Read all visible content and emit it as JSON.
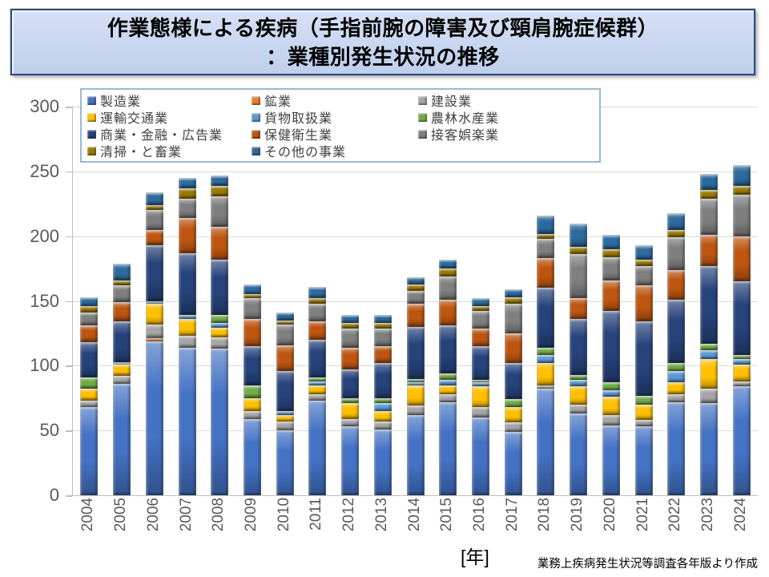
{
  "title": {
    "line1": "作業態様による疾病（手指前腕の障害及び頸肩腕症候群）",
    "line2": "：業種別発生状況の推移"
  },
  "footer": {
    "unit": "[年]",
    "source": "業務上疾病発生状況等調査各年版より作成"
  },
  "chart_data": {
    "type": "bar",
    "subtype": "stacked-vertical-3d-bevel",
    "title": "作業態様による疾病（手指前腕の障害及び頸肩腕症候群）：業種別発生状況の推移",
    "xlabel": "[年]",
    "ylabel": "",
    "ylim": [
      0,
      300
    ],
    "yticks": [
      0,
      50,
      100,
      150,
      200,
      250,
      300
    ],
    "grid": true,
    "legend_position": "top-inside",
    "axis_text_color": "#595959",
    "gridline_color": "#d9d9d9",
    "categories": [
      "2004",
      "2005",
      "2006",
      "2007",
      "2008",
      "2009",
      "2010",
      "2011",
      "2012",
      "2013",
      "2014",
      "2015",
      "2016",
      "2017",
      "2018",
      "2019",
      "2020",
      "2021",
      "2022",
      "2023",
      "2024"
    ],
    "totals": [
      153,
      179,
      234,
      245,
      247,
      163,
      141,
      161,
      139,
      139,
      168,
      182,
      152,
      159,
      216,
      210,
      201,
      193,
      218,
      248,
      255
    ],
    "series": [
      {
        "name": "製造業",
        "color": "#4472C4",
        "values": [
          68,
          86,
          119,
          114,
          113,
          59,
          50,
          73,
          53,
          51,
          62,
          72,
          60,
          49,
          82,
          63,
          54,
          53,
          72,
          71,
          84
        ]
      },
      {
        "name": "鉱業",
        "color": "#ED7D31",
        "values": [
          0,
          0,
          2,
          0,
          0,
          0,
          0,
          0,
          0,
          0,
          0,
          0,
          0,
          0,
          0,
          0,
          0,
          0,
          0,
          0,
          0
        ]
      },
      {
        "name": "建設業",
        "color": "#A5A5A5",
        "values": [
          5,
          6,
          11,
          9,
          9,
          6,
          7,
          5,
          6,
          6,
          7,
          6,
          8,
          7,
          3,
          7,
          8,
          5,
          6,
          11,
          4
        ]
      },
      {
        "name": "運輸交通業",
        "color": "#FFC000",
        "values": [
          9,
          9,
          16,
          13,
          7,
          10,
          5,
          7,
          12,
          8,
          16,
          7,
          16,
          12,
          17,
          14,
          14,
          12,
          9,
          23,
          13
        ]
      },
      {
        "name": "貨物取扱業",
        "color": "#5B9BD5",
        "values": [
          0,
          1,
          2,
          3,
          4,
          0,
          3,
          3,
          0,
          6,
          2,
          4,
          3,
          0,
          6,
          5,
          5,
          0,
          9,
          7,
          4
        ]
      },
      {
        "name": "農林水産業",
        "color": "#70AD47",
        "values": [
          9,
          1,
          0,
          0,
          6,
          10,
          0,
          3,
          4,
          4,
          3,
          5,
          2,
          6,
          6,
          4,
          6,
          7,
          6,
          5,
          3
        ]
      },
      {
        "name": "商業・金融・広告業",
        "color": "#26437C",
        "values": [
          27,
          31,
          43,
          48,
          43,
          30,
          31,
          29,
          22,
          27,
          40,
          37,
          26,
          28,
          46,
          43,
          55,
          57,
          49,
          60,
          57
        ]
      },
      {
        "name": "保健衛生業",
        "color": "#BE5611",
        "values": [
          13,
          15,
          12,
          27,
          25,
          21,
          20,
          14,
          17,
          13,
          18,
          20,
          14,
          23,
          23,
          16,
          24,
          28,
          23,
          24,
          35
        ]
      },
      {
        "name": "接客娯楽業",
        "color": "#7F7F7F",
        "values": [
          10,
          13,
          15,
          15,
          24,
          16,
          16,
          14,
          15,
          14,
          10,
          18,
          13,
          23,
          15,
          34,
          18,
          15,
          25,
          28,
          32
        ]
      },
      {
        "name": "清掃・と畜業",
        "color": "#9B7A01",
        "values": [
          5,
          4,
          4,
          8,
          8,
          3,
          3,
          4,
          4,
          4,
          5,
          6,
          4,
          5,
          4,
          6,
          6,
          5,
          6,
          7,
          7
        ]
      },
      {
        "name": "その他の事業",
        "color": "#2C6A9F",
        "values": [
          7,
          13,
          10,
          8,
          8,
          8,
          6,
          9,
          6,
          6,
          5,
          7,
          6,
          6,
          14,
          18,
          11,
          11,
          13,
          12,
          16
        ]
      }
    ]
  }
}
